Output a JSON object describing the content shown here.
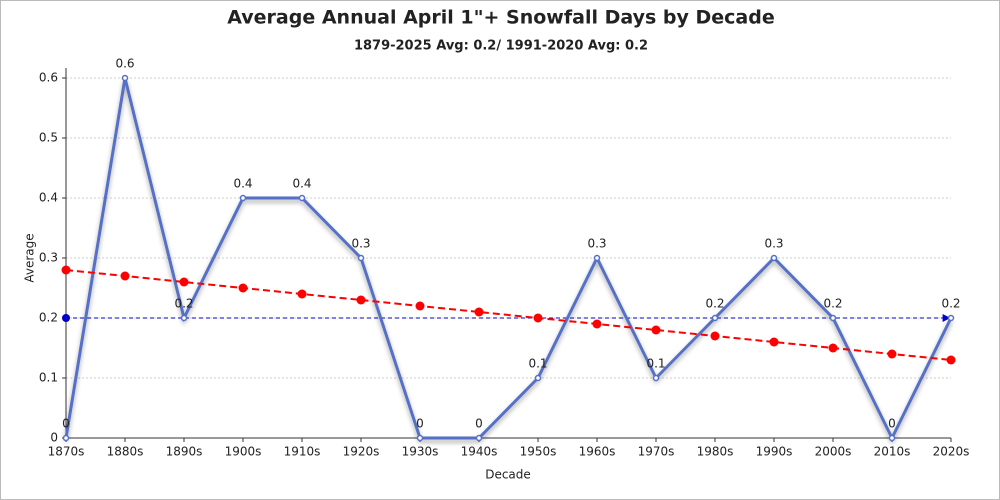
{
  "chart_data": {
    "type": "line",
    "title": "Average Annual April 1\"+ Snowfall Days by Decade",
    "subtitle": "1879-2025 Avg: 0.2/ 1991-2020 Avg: 0.2",
    "x_label": "Decade",
    "y_label": "Average",
    "categories": [
      "1870s",
      "1880s",
      "1890s",
      "1900s",
      "1910s",
      "1920s",
      "1930s",
      "1940s",
      "1950s",
      "1960s",
      "1970s",
      "1980s",
      "1990s",
      "2000s",
      "2010s",
      "2020s"
    ],
    "series": [
      {
        "color": "#5470c6",
        "values": [
          0,
          0.6,
          0.2,
          0.4,
          0.4,
          0.3,
          0,
          0,
          0.1,
          0.3,
          0.1,
          0.2,
          0.3,
          0.2,
          0,
          0.2
        ],
        "data_labels": true
      },
      {
        "color": "#ff0000",
        "values": [
          0.28,
          0.27,
          0.26,
          0.25,
          0.24,
          0.23,
          0.22,
          0.21,
          0.2,
          0.19,
          0.18,
          0.17,
          0.16,
          0.15,
          0.14,
          0.13
        ],
        "dashed": true,
        "data_labels": false
      }
    ],
    "average_line": {
      "value": 0.2,
      "color": "#0000cc"
    },
    "ylim": [
      0,
      0.6
    ],
    "yticks": [
      0,
      0.1,
      0.2,
      0.3,
      0.4,
      0.5,
      0.6
    ],
    "grid": true
  }
}
